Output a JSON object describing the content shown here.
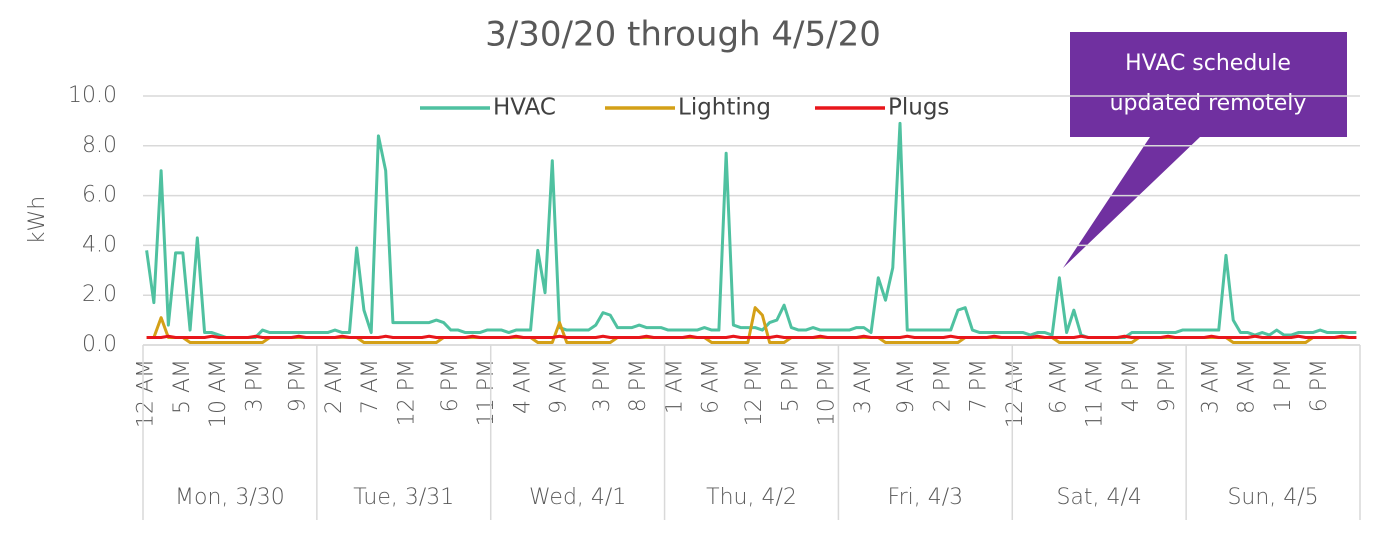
{
  "chart_data": {
    "type": "line",
    "title": "3/30/20 through 4/5/20",
    "y_label": "kWh",
    "ylim": [
      0,
      10
    ],
    "yticks": [
      {
        "value": 0,
        "label": "0.0"
      },
      {
        "value": 2,
        "label": "2.0"
      },
      {
        "value": 4,
        "label": "4.0"
      },
      {
        "value": 6,
        "label": "6.0"
      },
      {
        "value": 8,
        "label": "8.0"
      },
      {
        "value": 10,
        "label": "10.0"
      }
    ],
    "grid": true,
    "legend": "top",
    "annotation": [
      "HVAC schedule",
      "updated remotely"
    ],
    "annotation_color": "#7030a0",
    "day_labels": [
      "Mon, 3/30",
      "Tue, 3/31",
      "Wed, 4/1",
      "Thu, 4/2",
      "Fri, 4/3",
      "Sat, 4/4",
      "Sun, 4/5"
    ],
    "categories": [
      "12 AM",
      null,
      null,
      null,
      null,
      "5 AM",
      null,
      null,
      null,
      null,
      "10 AM",
      null,
      null,
      null,
      null,
      "3 PM",
      null,
      null,
      null,
      null,
      null,
      "9 PM",
      null,
      null,
      null,
      null,
      "2 AM",
      null,
      null,
      null,
      null,
      "7 AM",
      null,
      null,
      null,
      null,
      "12 PM",
      null,
      null,
      null,
      null,
      null,
      "6 PM",
      null,
      null,
      null,
      null,
      "11 PM",
      null,
      null,
      null,
      null,
      "4 AM",
      null,
      null,
      null,
      null,
      "9 AM",
      null,
      null,
      null,
      null,
      null,
      "3 PM",
      null,
      null,
      null,
      null,
      "8 PM",
      null,
      null,
      null,
      null,
      "1 AM",
      null,
      null,
      null,
      null,
      "6 AM",
      null,
      null,
      null,
      null,
      null,
      "12 PM",
      null,
      null,
      null,
      null,
      "5 PM",
      null,
      null,
      null,
      null,
      "10 PM",
      null,
      null,
      null,
      null,
      "3 AM",
      null,
      null,
      null,
      null,
      null,
      "9 AM",
      null,
      null,
      null,
      null,
      "2 PM",
      null,
      null,
      null,
      null,
      "7 PM",
      null,
      null,
      null,
      null,
      "12 AM",
      null,
      null,
      null,
      null,
      null,
      "6 AM",
      null,
      null,
      null,
      null,
      "11 AM",
      null,
      null,
      null,
      null,
      "4 PM",
      null,
      null,
      null,
      null,
      "9 PM",
      null,
      null,
      null,
      null,
      null,
      "3 AM",
      null,
      null,
      null,
      null,
      "8 AM",
      null,
      null,
      null,
      null,
      "1 PM",
      null,
      null,
      null,
      null,
      "6 PM",
      null,
      null,
      null,
      null,
      null
    ],
    "series": [
      {
        "name": "HVAC",
        "color": "#4fc1a0",
        "values": [
          3.8,
          1.7,
          7.0,
          0.8,
          3.7,
          3.7,
          0.6,
          4.3,
          0.5,
          0.5,
          0.4,
          0.3,
          0.3,
          0.3,
          0.3,
          0.3,
          0.6,
          0.5,
          0.5,
          0.5,
          0.5,
          0.5,
          0.5,
          0.5,
          0.5,
          0.5,
          0.6,
          0.5,
          0.5,
          3.9,
          1.4,
          0.5,
          8.4,
          7.0,
          0.9,
          0.9,
          0.9,
          0.9,
          0.9,
          0.9,
          1.0,
          0.9,
          0.6,
          0.6,
          0.5,
          0.5,
          0.5,
          0.6,
          0.6,
          0.6,
          0.5,
          0.6,
          0.6,
          0.6,
          3.8,
          2.1,
          7.4,
          0.7,
          0.6,
          0.6,
          0.6,
          0.6,
          0.8,
          1.3,
          1.2,
          0.7,
          0.7,
          0.7,
          0.8,
          0.7,
          0.7,
          0.7,
          0.6,
          0.6,
          0.6,
          0.6,
          0.6,
          0.7,
          0.6,
          0.6,
          7.7,
          0.8,
          0.7,
          0.7,
          0.7,
          0.6,
          0.9,
          1.0,
          1.6,
          0.7,
          0.6,
          0.6,
          0.7,
          0.6,
          0.6,
          0.6,
          0.6,
          0.6,
          0.7,
          0.7,
          0.5,
          2.7,
          1.8,
          3.1,
          8.9,
          0.6,
          0.6,
          0.6,
          0.6,
          0.6,
          0.6,
          0.6,
          1.4,
          1.5,
          0.6,
          0.5,
          0.5,
          0.5,
          0.5,
          0.5,
          0.5,
          0.5,
          0.4,
          0.5,
          0.5,
          0.4,
          2.7,
          0.5,
          1.4,
          0.4,
          0.3,
          0.3,
          0.3,
          0.3,
          0.3,
          0.3,
          0.5,
          0.5,
          0.5,
          0.5,
          0.5,
          0.5,
          0.5,
          0.6,
          0.6,
          0.6,
          0.6,
          0.6,
          0.6,
          3.6,
          1.0,
          0.5,
          0.5,
          0.4,
          0.5,
          0.4,
          0.6,
          0.4,
          0.4,
          0.5,
          0.5,
          0.5,
          0.6,
          0.5,
          0.5,
          0.5,
          0.5,
          0.5
        ]
      },
      {
        "name": "Lighting",
        "color": "#d4a017",
        "values": [
          0.3,
          0.3,
          1.1,
          0.3,
          0.3,
          0.3,
          0.1,
          0.1,
          0.1,
          0.1,
          0.1,
          0.1,
          0.1,
          0.1,
          0.1,
          0.1,
          0.1,
          0.3,
          0.3,
          0.3,
          0.3,
          0.3,
          0.3,
          0.3,
          0.3,
          0.3,
          0.3,
          0.3,
          0.3,
          0.3,
          0.1,
          0.1,
          0.1,
          0.1,
          0.1,
          0.1,
          0.1,
          0.1,
          0.1,
          0.1,
          0.1,
          0.3,
          0.3,
          0.3,
          0.3,
          0.3,
          0.3,
          0.3,
          0.3,
          0.3,
          0.3,
          0.3,
          0.3,
          0.3,
          0.1,
          0.1,
          0.1,
          0.9,
          0.1,
          0.1,
          0.1,
          0.1,
          0.1,
          0.1,
          0.1,
          0.3,
          0.3,
          0.3,
          0.3,
          0.3,
          0.3,
          0.3,
          0.3,
          0.3,
          0.3,
          0.3,
          0.3,
          0.3,
          0.1,
          0.1,
          0.1,
          0.1,
          0.1,
          0.1,
          1.5,
          1.2,
          0.1,
          0.1,
          0.1,
          0.3,
          0.3,
          0.3,
          0.3,
          0.3,
          0.3,
          0.3,
          0.3,
          0.3,
          0.3,
          0.3,
          0.3,
          0.3,
          0.1,
          0.1,
          0.1,
          0.1,
          0.1,
          0.1,
          0.1,
          0.1,
          0.1,
          0.1,
          0.1,
          0.3,
          0.3,
          0.3,
          0.3,
          0.3,
          0.3,
          0.3,
          0.3,
          0.3,
          0.3,
          0.3,
          0.3,
          0.3,
          0.1,
          0.1,
          0.1,
          0.1,
          0.1,
          0.1,
          0.1,
          0.1,
          0.1,
          0.1,
          0.1,
          0.3,
          0.3,
          0.3,
          0.3,
          0.3,
          0.3,
          0.3,
          0.3,
          0.3,
          0.3,
          0.3,
          0.3,
          0.3,
          0.1,
          0.1,
          0.1,
          0.1,
          0.1,
          0.1,
          0.1,
          0.1,
          0.1,
          0.1,
          0.1,
          0.3,
          0.3,
          0.3,
          0.3,
          0.3,
          0.3,
          0.3
        ]
      },
      {
        "name": "Plugs",
        "color": "#e8161b",
        "values": [
          0.3,
          0.3,
          0.3,
          0.35,
          0.3,
          0.3,
          0.3,
          0.3,
          0.3,
          0.35,
          0.3,
          0.3,
          0.3,
          0.3,
          0.3,
          0.35,
          0.3,
          0.3,
          0.3,
          0.3,
          0.3,
          0.35,
          0.3,
          0.3,
          0.3,
          0.3,
          0.3,
          0.35,
          0.3,
          0.3,
          0.3,
          0.3,
          0.3,
          0.35,
          0.3,
          0.3,
          0.3,
          0.3,
          0.3,
          0.35,
          0.3,
          0.3,
          0.3,
          0.3,
          0.3,
          0.35,
          0.3,
          0.3,
          0.3,
          0.3,
          0.3,
          0.35,
          0.3,
          0.3,
          0.3,
          0.3,
          0.3,
          0.35,
          0.3,
          0.3,
          0.3,
          0.3,
          0.3,
          0.35,
          0.3,
          0.3,
          0.3,
          0.3,
          0.3,
          0.35,
          0.3,
          0.3,
          0.3,
          0.3,
          0.3,
          0.35,
          0.3,
          0.3,
          0.3,
          0.3,
          0.3,
          0.35,
          0.3,
          0.3,
          0.3,
          0.3,
          0.3,
          0.35,
          0.3,
          0.3,
          0.3,
          0.3,
          0.3,
          0.35,
          0.3,
          0.3,
          0.3,
          0.3,
          0.3,
          0.35,
          0.3,
          0.3,
          0.3,
          0.3,
          0.3,
          0.35,
          0.3,
          0.3,
          0.3,
          0.3,
          0.3,
          0.35,
          0.3,
          0.3,
          0.3,
          0.3,
          0.3,
          0.35,
          0.3,
          0.3,
          0.3,
          0.3,
          0.3,
          0.35,
          0.3,
          0.3,
          0.3,
          0.3,
          0.3,
          0.35,
          0.3,
          0.3,
          0.3,
          0.3,
          0.3,
          0.35,
          0.3,
          0.3,
          0.3,
          0.3,
          0.3,
          0.35,
          0.3,
          0.3,
          0.3,
          0.3,
          0.3,
          0.35,
          0.3,
          0.3,
          0.3,
          0.3,
          0.3,
          0.35,
          0.3,
          0.3,
          0.3,
          0.3,
          0.3,
          0.35,
          0.3,
          0.3,
          0.3,
          0.3,
          0.3,
          0.35,
          0.3,
          0.3
        ]
      }
    ]
  }
}
